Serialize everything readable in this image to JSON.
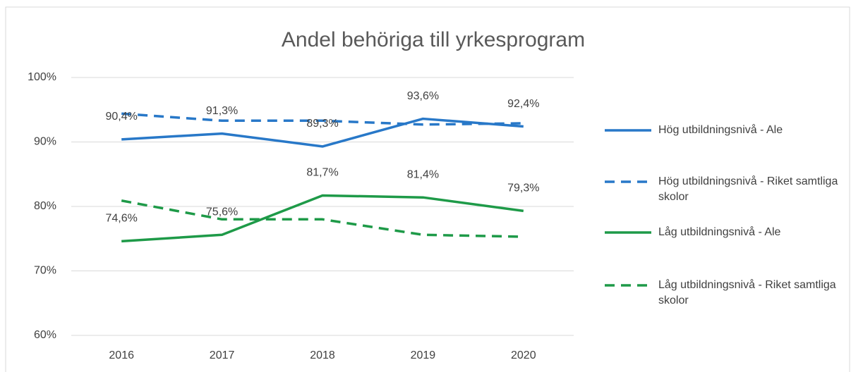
{
  "chart_data": {
    "type": "line",
    "title": "Andel behöriga till yrkesprogram",
    "categories": [
      "2016",
      "2017",
      "2018",
      "2019",
      "2020"
    ],
    "series": [
      {
        "name": "Hög utbildningsnivå - Ale",
        "color": "#2878c8",
        "dash": false,
        "values": [
          90.4,
          91.3,
          89.3,
          93.6,
          92.4
        ],
        "value_labels": [
          "90,4%",
          "91,3%",
          "89,3%",
          "93,6%",
          "92,4%"
        ]
      },
      {
        "name": "Hög utbildningsnivå - Riket samtliga skolor",
        "color": "#2878c8",
        "dash": true,
        "values": [
          94.4,
          93.3,
          93.3,
          92.7,
          92.9
        ]
      },
      {
        "name": "Låg utbildningsnivå - Ale",
        "color": "#1e9a48",
        "dash": false,
        "values": [
          74.6,
          75.6,
          81.7,
          81.4,
          79.3
        ],
        "value_labels": [
          "74,6%",
          "75,6%",
          "81,7%",
          "81,4%",
          "79,3%"
        ]
      },
      {
        "name": "Låg utbildningsnivå - Riket samtliga skolor",
        "color": "#1e9a48",
        "dash": true,
        "values": [
          80.9,
          78.0,
          78.0,
          75.6,
          75.3
        ]
      }
    ],
    "ylim": [
      60,
      100
    ],
    "yticks": [
      {
        "value": 60,
        "label": "60%"
      },
      {
        "value": 70,
        "label": "70%"
      },
      {
        "value": 80,
        "label": "80%"
      },
      {
        "value": 90,
        "label": "90%"
      },
      {
        "value": 100,
        "label": "100%"
      }
    ],
    "grid": true,
    "legend": "right"
  }
}
